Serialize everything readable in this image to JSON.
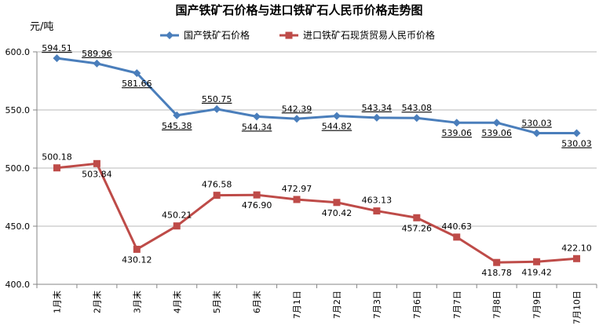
{
  "chart_data": {
    "type": "line",
    "title": "国产铁矿石价格与进口铁矿石人民币价格走势图",
    "ylabel": "元/吨",
    "ylim": [
      400,
      600
    ],
    "yticks": [
      "600.0",
      "550.0",
      "500.0",
      "450.0",
      "400.0"
    ],
    "categories": [
      "1月末",
      "2月末",
      "3月末",
      "4月末",
      "5月末",
      "6月末",
      "7月1日",
      "7月2日",
      "7月3日",
      "7月6日",
      "7月7日",
      "7月8日",
      "7月9日",
      "7月10日"
    ],
    "legend_position": "top",
    "series": [
      {
        "name": "国产铁矿石价格",
        "color": "#4a7ebb",
        "marker": "diamond",
        "values": [
          594.51,
          589.96,
          581.66,
          545.38,
          550.75,
          544.34,
          542.39,
          544.82,
          543.34,
          543.08,
          539.06,
          539.06,
          530.03,
          530.03
        ],
        "labels": [
          "594.51",
          "589.96",
          "581.66",
          "545.38",
          "550.75",
          "544.34",
          "542.39",
          "544.82",
          "543.34",
          "543.08",
          "539.06",
          "539.06",
          "530.03",
          "530.03"
        ]
      },
      {
        "name": "进口铁矿石现货贸易人民币价格",
        "color": "#be4b48",
        "marker": "square",
        "values": [
          500.18,
          503.84,
          430.12,
          450.21,
          476.58,
          476.9,
          472.97,
          470.42,
          463.13,
          457.26,
          440.63,
          418.78,
          419.42,
          422.1
        ],
        "labels": [
          "500.18",
          "503.84",
          "430.12",
          "450.21",
          "476.58",
          "476.90",
          "472.97",
          "470.42",
          "463.13",
          "457.26",
          "440.63",
          "418.78",
          "419.42",
          "422.10"
        ]
      }
    ]
  }
}
